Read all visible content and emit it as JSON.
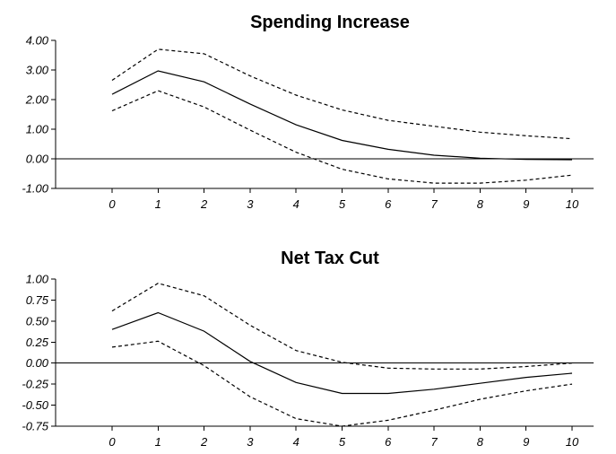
{
  "chart_data": [
    {
      "type": "line",
      "title": "Spending Increase",
      "x": [
        0,
        1,
        2,
        3,
        4,
        5,
        6,
        7,
        8,
        9,
        10
      ],
      "x_tick_labels": [
        "0",
        "1",
        "2",
        "3",
        "4",
        "5",
        "6",
        "7",
        "8",
        "9",
        "10"
      ],
      "y_tick_values": [
        4,
        3,
        2,
        1,
        0,
        -1
      ],
      "y_tick_labels": [
        "4.00",
        "3.00",
        "2.00",
        "1.00",
        "0.00",
        "-1.00"
      ],
      "ylim": [
        -1,
        4
      ],
      "grid": false,
      "series": [
        {
          "role": "upper",
          "style": "dashed",
          "values": [
            2.65,
            3.7,
            3.55,
            2.8,
            2.15,
            1.65,
            1.3,
            1.1,
            0.9,
            0.78,
            0.68
          ]
        },
        {
          "role": "estimate",
          "style": "solid",
          "values": [
            2.18,
            2.97,
            2.6,
            1.85,
            1.15,
            0.62,
            0.32,
            0.12,
            0.02,
            -0.02,
            -0.03
          ]
        },
        {
          "role": "lower",
          "style": "dashed",
          "values": [
            1.62,
            2.3,
            1.75,
            0.97,
            0.22,
            -0.35,
            -0.68,
            -0.82,
            -0.82,
            -0.72,
            -0.55
          ]
        }
      ]
    },
    {
      "type": "line",
      "title": "Net Tax Cut",
      "x": [
        0,
        1,
        2,
        3,
        4,
        5,
        6,
        7,
        8,
        9,
        10
      ],
      "x_tick_labels": [
        "0",
        "1",
        "2",
        "3",
        "4",
        "5",
        "6",
        "7",
        "8",
        "9",
        "10"
      ],
      "y_tick_values": [
        1,
        0.75,
        0.5,
        0.25,
        0,
        -0.25,
        -0.5,
        -0.75
      ],
      "y_tick_labels": [
        "1.00",
        "0.75",
        "0.50",
        "0.25",
        "0.00",
        "-0.25",
        "-0.50",
        "-0.75"
      ],
      "ylim": [
        -0.75,
        1
      ],
      "grid": false,
      "series": [
        {
          "role": "upper",
          "style": "dashed",
          "values": [
            0.62,
            0.95,
            0.8,
            0.45,
            0.15,
            0.01,
            -0.06,
            -0.07,
            -0.07,
            -0.04,
            0.0
          ]
        },
        {
          "role": "estimate",
          "style": "solid",
          "values": [
            0.4,
            0.6,
            0.38,
            0.02,
            -0.23,
            -0.36,
            -0.36,
            -0.31,
            -0.24,
            -0.17,
            -0.12
          ]
        },
        {
          "role": "lower",
          "style": "dashed",
          "values": [
            0.19,
            0.26,
            -0.03,
            -0.4,
            -0.66,
            -0.75,
            -0.68,
            -0.56,
            -0.43,
            -0.33,
            -0.25
          ]
        }
      ]
    }
  ]
}
